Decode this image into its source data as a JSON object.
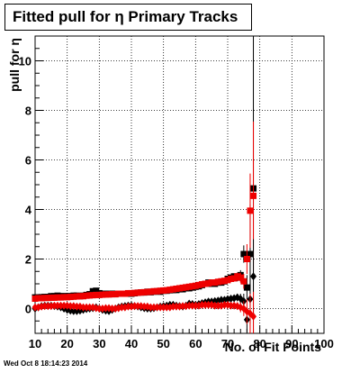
{
  "title": "Fitted pull for η Primary Tracks",
  "timestamp": "Wed Oct  8 18:14:23 2014",
  "chart_data": {
    "type": "scatter",
    "xlabel": "No. of Fit Points",
    "ylabel": "pull for η",
    "xlim": [
      10,
      100
    ],
    "ylim": [
      -1,
      11
    ],
    "x_ticks": [
      "10",
      "20",
      "30",
      "40",
      "50",
      "60",
      "70",
      "80",
      "90",
      "100"
    ],
    "y_ticks": [
      "0",
      "2",
      "4",
      "6",
      "8",
      "10"
    ],
    "grid": true,
    "series": [
      {
        "marker": "square",
        "color": "#000000",
        "x": [
          10,
          11,
          12,
          13,
          14,
          15,
          16,
          17,
          18,
          19,
          20,
          21,
          22,
          23,
          24,
          25,
          26,
          27,
          28,
          29,
          30,
          31,
          32,
          33,
          34,
          35,
          36,
          37,
          38,
          39,
          40,
          41,
          42,
          43,
          44,
          45,
          46,
          47,
          48,
          49,
          50,
          51,
          52,
          53,
          54,
          55,
          56,
          57,
          58,
          59,
          60,
          61,
          62,
          63,
          64,
          65,
          66,
          67,
          68,
          69,
          70,
          71,
          72,
          73,
          74,
          75,
          76,
          77,
          78
        ],
        "y": [
          0.45,
          0.45,
          0.46,
          0.47,
          0.47,
          0.5,
          0.5,
          0.52,
          0.5,
          0.5,
          0.5,
          0.5,
          0.52,
          0.52,
          0.5,
          0.52,
          0.55,
          0.58,
          0.7,
          0.72,
          0.62,
          0.6,
          0.6,
          0.58,
          0.6,
          0.58,
          0.6,
          0.6,
          0.6,
          0.6,
          0.6,
          0.62,
          0.64,
          0.65,
          0.65,
          0.68,
          0.66,
          0.68,
          0.7,
          0.68,
          0.72,
          0.72,
          0.74,
          0.75,
          0.75,
          0.78,
          0.78,
          0.82,
          0.82,
          0.85,
          0.88,
          0.9,
          0.95,
          1.0,
          1.05,
          1.0,
          1.0,
          1.05,
          1.05,
          1.1,
          1.2,
          1.25,
          1.3,
          1.25,
          1.35,
          2.2,
          0.85,
          2.2,
          4.85
        ],
        "yerr": [
          0.05,
          0.05,
          0.05,
          0.05,
          0.05,
          0.05,
          0.05,
          0.05,
          0.05,
          0.05,
          0.05,
          0.05,
          0.05,
          0.05,
          0.05,
          0.05,
          0.05,
          0.05,
          0.05,
          0.05,
          0.05,
          0.05,
          0.05,
          0.05,
          0.05,
          0.05,
          0.05,
          0.05,
          0.05,
          0.05,
          0.05,
          0.05,
          0.05,
          0.05,
          0.05,
          0.05,
          0.05,
          0.05,
          0.05,
          0.05,
          0.05,
          0.05,
          0.05,
          0.05,
          0.05,
          0.05,
          0.05,
          0.05,
          0.05,
          0.05,
          0.05,
          0.05,
          0.05,
          0.05,
          0.05,
          0.05,
          0.05,
          0.05,
          0.05,
          0.06,
          0.08,
          0.1,
          0.12,
          0.15,
          0.2,
          0.35,
          0.5,
          2.0,
          6.5
        ]
      },
      {
        "marker": "square",
        "color": "#ee0000",
        "x": [
          10,
          11,
          12,
          13,
          14,
          15,
          16,
          17,
          18,
          19,
          20,
          21,
          22,
          23,
          24,
          25,
          26,
          27,
          28,
          29,
          30,
          31,
          32,
          33,
          34,
          35,
          36,
          37,
          38,
          39,
          40,
          41,
          42,
          43,
          44,
          45,
          46,
          47,
          48,
          49,
          50,
          51,
          52,
          53,
          54,
          55,
          56,
          57,
          58,
          59,
          60,
          61,
          62,
          63,
          64,
          65,
          66,
          67,
          68,
          69,
          70,
          71,
          72,
          73,
          74,
          75,
          76,
          77,
          78
        ],
        "y": [
          0.4,
          0.42,
          0.42,
          0.43,
          0.43,
          0.44,
          0.44,
          0.45,
          0.45,
          0.46,
          0.46,
          0.47,
          0.48,
          0.49,
          0.5,
          0.5,
          0.52,
          0.53,
          0.54,
          0.55,
          0.55,
          0.56,
          0.57,
          0.57,
          0.58,
          0.58,
          0.6,
          0.6,
          0.6,
          0.62,
          0.62,
          0.63,
          0.64,
          0.65,
          0.66,
          0.67,
          0.68,
          0.7,
          0.7,
          0.72,
          0.73,
          0.74,
          0.76,
          0.78,
          0.8,
          0.82,
          0.84,
          0.86,
          0.88,
          0.9,
          0.92,
          0.95,
          0.98,
          1.0,
          1.02,
          1.05,
          1.05,
          1.08,
          1.1,
          1.12,
          1.15,
          1.2,
          1.22,
          1.3,
          1.25,
          1.1,
          2.0,
          3.95,
          4.55
        ],
        "yerr": [
          0.05,
          0.05,
          0.05,
          0.05,
          0.05,
          0.05,
          0.05,
          0.05,
          0.05,
          0.05,
          0.05,
          0.05,
          0.05,
          0.05,
          0.05,
          0.05,
          0.05,
          0.05,
          0.05,
          0.05,
          0.05,
          0.05,
          0.05,
          0.05,
          0.05,
          0.05,
          0.05,
          0.05,
          0.05,
          0.05,
          0.05,
          0.05,
          0.05,
          0.05,
          0.05,
          0.05,
          0.05,
          0.05,
          0.05,
          0.05,
          0.05,
          0.05,
          0.05,
          0.05,
          0.05,
          0.05,
          0.05,
          0.05,
          0.05,
          0.05,
          0.05,
          0.05,
          0.05,
          0.05,
          0.05,
          0.05,
          0.05,
          0.05,
          0.05,
          0.06,
          0.08,
          0.1,
          0.12,
          0.15,
          0.2,
          0.3,
          0.6,
          1.5,
          3.0
        ]
      },
      {
        "marker": "diamond",
        "color": "#000000",
        "x": [
          10,
          11,
          12,
          13,
          14,
          15,
          16,
          17,
          18,
          19,
          20,
          21,
          22,
          23,
          24,
          25,
          26,
          27,
          28,
          29,
          30,
          31,
          32,
          33,
          34,
          35,
          36,
          37,
          38,
          39,
          40,
          41,
          42,
          43,
          44,
          45,
          46,
          47,
          48,
          49,
          50,
          51,
          52,
          53,
          54,
          55,
          56,
          57,
          58,
          59,
          60,
          61,
          62,
          63,
          64,
          65,
          66,
          67,
          68,
          69,
          70,
          71,
          72,
          73,
          74,
          75,
          76,
          77,
          78
        ],
        "y": [
          0.0,
          0.05,
          0.1,
          0.12,
          0.12,
          0.12,
          0.1,
          0.08,
          0.05,
          0.0,
          -0.05,
          -0.08,
          -0.1,
          -0.1,
          -0.08,
          -0.05,
          -0.02,
          0.0,
          0.02,
          0.05,
          0.0,
          -0.05,
          -0.08,
          -0.1,
          -0.05,
          0.0,
          0.05,
          0.08,
          0.1,
          0.12,
          0.12,
          0.1,
          0.08,
          0.05,
          0.02,
          0.0,
          0.0,
          0.02,
          0.05,
          0.08,
          0.1,
          0.12,
          0.15,
          0.15,
          0.12,
          0.1,
          0.08,
          0.12,
          0.2,
          0.18,
          0.15,
          0.18,
          0.22,
          0.25,
          0.28,
          0.28,
          0.3,
          0.32,
          0.35,
          0.35,
          0.38,
          0.4,
          0.42,
          0.45,
          0.4,
          0.3,
          -0.45,
          0.38,
          1.3
        ],
        "yerr": [
          0.05,
          0.05,
          0.05,
          0.05,
          0.05,
          0.05,
          0.05,
          0.05,
          0.05,
          0.05,
          0.05,
          0.05,
          0.05,
          0.05,
          0.05,
          0.05,
          0.05,
          0.05,
          0.05,
          0.05,
          0.05,
          0.05,
          0.05,
          0.05,
          0.05,
          0.05,
          0.05,
          0.05,
          0.05,
          0.05,
          0.05,
          0.05,
          0.05,
          0.05,
          0.05,
          0.05,
          0.05,
          0.05,
          0.05,
          0.05,
          0.05,
          0.05,
          0.05,
          0.05,
          0.05,
          0.05,
          0.05,
          0.05,
          0.05,
          0.05,
          0.05,
          0.05,
          0.05,
          0.05,
          0.05,
          0.05,
          0.05,
          0.05,
          0.05,
          0.06,
          0.08,
          0.1,
          0.12,
          0.15,
          0.2,
          0.3,
          0.5,
          1.0,
          1.5
        ]
      },
      {
        "marker": "diamond",
        "color": "#ee0000",
        "x": [
          10,
          11,
          12,
          13,
          14,
          15,
          16,
          17,
          18,
          19,
          20,
          21,
          22,
          23,
          24,
          25,
          26,
          27,
          28,
          29,
          30,
          31,
          32,
          33,
          34,
          35,
          36,
          37,
          38,
          39,
          40,
          41,
          42,
          43,
          44,
          45,
          46,
          47,
          48,
          49,
          50,
          51,
          52,
          53,
          54,
          55,
          56,
          57,
          58,
          59,
          60,
          61,
          62,
          63,
          64,
          65,
          66,
          67,
          68,
          69,
          70,
          71,
          72,
          73,
          74,
          75,
          76,
          77,
          78
        ],
        "y": [
          0.05,
          0.05,
          0.08,
          0.1,
          0.1,
          0.1,
          0.12,
          0.12,
          0.12,
          0.12,
          0.12,
          0.1,
          0.1,
          0.08,
          0.08,
          0.05,
          0.05,
          0.05,
          0.05,
          0.02,
          0.0,
          0.0,
          0.02,
          0.02,
          0.0,
          0.0,
          0.02,
          0.05,
          0.05,
          0.08,
          0.08,
          0.1,
          0.1,
          0.1,
          0.08,
          0.08,
          0.05,
          0.05,
          0.05,
          0.05,
          0.05,
          0.05,
          0.05,
          0.08,
          0.08,
          0.08,
          0.1,
          0.1,
          0.12,
          0.12,
          0.12,
          0.12,
          0.15,
          0.15,
          0.15,
          0.15,
          0.12,
          0.12,
          0.12,
          0.15,
          0.15,
          0.12,
          0.12,
          0.1,
          0.05,
          0.0,
          -0.12,
          -0.2,
          -0.32
        ],
        "yerr": [
          0.05,
          0.05,
          0.05,
          0.05,
          0.05,
          0.05,
          0.05,
          0.05,
          0.05,
          0.05,
          0.05,
          0.05,
          0.05,
          0.05,
          0.05,
          0.05,
          0.05,
          0.05,
          0.05,
          0.05,
          0.05,
          0.05,
          0.05,
          0.05,
          0.05,
          0.05,
          0.05,
          0.05,
          0.05,
          0.05,
          0.05,
          0.05,
          0.05,
          0.05,
          0.05,
          0.05,
          0.05,
          0.05,
          0.05,
          0.05,
          0.05,
          0.05,
          0.05,
          0.05,
          0.05,
          0.05,
          0.05,
          0.05,
          0.05,
          0.05,
          0.05,
          0.05,
          0.05,
          0.05,
          0.05,
          0.05,
          0.05,
          0.05,
          0.05,
          0.06,
          0.08,
          0.1,
          0.12,
          0.15,
          0.2,
          0.3,
          0.5,
          0.8,
          1.0
        ]
      }
    ]
  }
}
